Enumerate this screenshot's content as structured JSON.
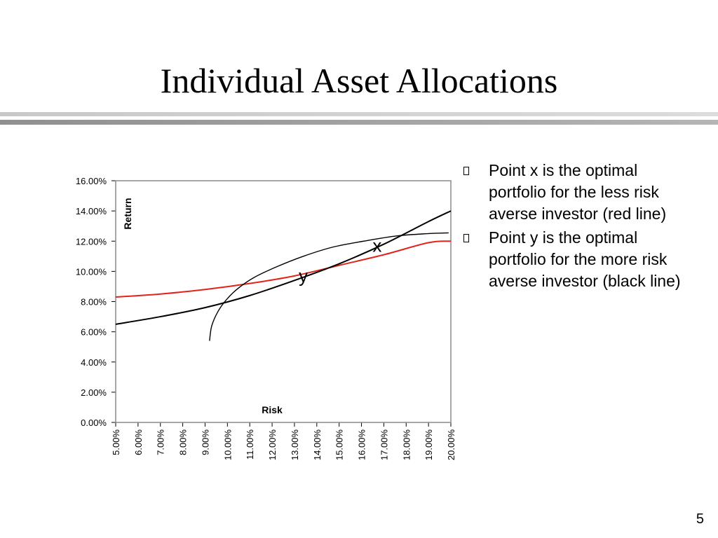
{
  "slide": {
    "title": "Individual Asset Allocations",
    "page_number": "5"
  },
  "bullets": [
    "Point x is the optimal portfolio for the less risk averse investor (red line)",
    "Point y is the optimal portfolio for the more risk averse investor (black line)"
  ],
  "colors": {
    "red_line": "#e2231a",
    "black_line": "#000000",
    "plot_border": "#8a8a8a"
  },
  "chart_data": {
    "type": "line",
    "xlabel": "Risk",
    "ylabel": "Return",
    "x_ticks": [
      "5.00%",
      "6.00%",
      "7.00%",
      "8.00%",
      "9.00%",
      "10.00%",
      "11.00%",
      "12.00%",
      "13.00%",
      "14.00%",
      "15.00%",
      "16.00%",
      "17.00%",
      "18.00%",
      "19.00%",
      "20.00%"
    ],
    "y_ticks": [
      "0.00%",
      "2.00%",
      "4.00%",
      "6.00%",
      "8.00%",
      "10.00%",
      "12.00%",
      "14.00%",
      "16.00%"
    ],
    "xlim": [
      5,
      20
    ],
    "ylim": [
      0,
      16
    ],
    "grid": false,
    "series": [
      {
        "color": "#e2231a",
        "x": [
          5,
          7,
          9,
          11,
          13,
          15,
          17,
          19,
          20
        ],
        "y": [
          8.3,
          8.5,
          8.8,
          9.2,
          9.7,
          10.4,
          11.1,
          11.9,
          12.0
        ]
      },
      {
        "color": "#000000",
        "x": [
          5,
          7,
          9,
          11,
          13,
          15,
          17,
          19,
          20
        ],
        "y": [
          6.5,
          7.0,
          7.6,
          8.4,
          9.4,
          10.5,
          11.8,
          13.3,
          14.0
        ]
      },
      {
        "color": "#000000",
        "x": [
          9.2,
          9.3,
          9.6,
          10.0,
          10.5,
          11.2,
          12.2,
          13.4,
          14.7,
          16.1,
          17.6,
          19.0,
          19.9
        ],
        "y": [
          5.4,
          6.4,
          7.4,
          8.2,
          8.9,
          9.6,
          10.3,
          11.0,
          11.6,
          12.0,
          12.35,
          12.5,
          12.55
        ]
      }
    ],
    "annotations": [
      {
        "text": "x",
        "x": 16.7,
        "y": 11.3
      },
      {
        "text": "y",
        "x": 13.4,
        "y": 9.3
      }
    ]
  }
}
